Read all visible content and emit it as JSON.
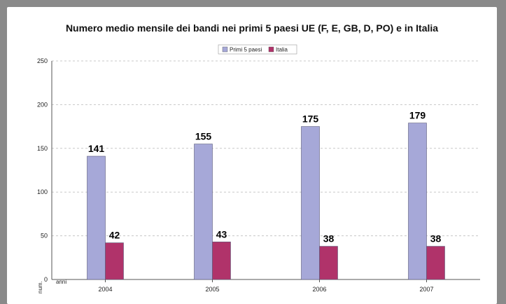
{
  "chart_data": {
    "type": "bar",
    "title": "Numero medio mensile dei bandi nei primi 5 paesi UE (F, E, GB, D, PO) e in Italia",
    "categories": [
      "2004",
      "2005",
      "2006",
      "2007"
    ],
    "series": [
      {
        "name": "Primi 5 paesi",
        "values": [
          141,
          155,
          175,
          179
        ],
        "color": "#a6a8d8"
      },
      {
        "name": "Italia",
        "values": [
          42,
          43,
          38,
          38
        ],
        "color": "#b0336a"
      }
    ],
    "ylim": [
      0,
      250
    ],
    "yticks": [
      0,
      50,
      100,
      150,
      200,
      250
    ],
    "xlabel": "anni",
    "ylabel": "num.",
    "grid": true,
    "legend": "top-center"
  }
}
